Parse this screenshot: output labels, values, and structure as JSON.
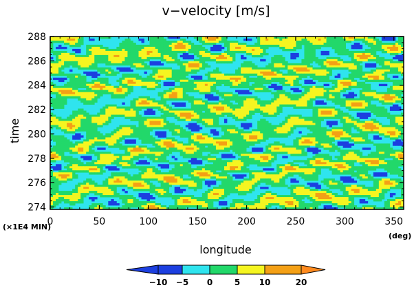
{
  "chart_data": {
    "type": "heatmap",
    "title": "v−velocity [m/s]",
    "xlabel": "longitude",
    "ylabel": "time",
    "x_unit": "(deg)",
    "y_unit": "(×1E4 MIN)",
    "xlim": [
      0,
      360
    ],
    "ylim": [
      273.8,
      288
    ],
    "x_ticks": [
      "0",
      "50",
      "100",
      "150",
      "200",
      "250",
      "300",
      "350"
    ],
    "x_tick_values": [
      0,
      50,
      100,
      150,
      200,
      250,
      300,
      350
    ],
    "y_ticks": [
      "274",
      "276",
      "278",
      "280",
      "282",
      "284",
      "286",
      "288"
    ],
    "y_tick_values": [
      274,
      276,
      278,
      280,
      282,
      284,
      286,
      288
    ],
    "colorbar": {
      "labels": [
        "−10",
        "−5",
        "0",
        "5",
        "10",
        "20"
      ],
      "levels": [
        -10,
        -5,
        0,
        5,
        10,
        20
      ],
      "colors": [
        "#1c3fe0",
        "#2fe4ee",
        "#22d86a",
        "#f5f520",
        "#f4a015",
        "#ff8a1e"
      ],
      "extend": "both"
    },
    "field_note": "v-velocity field varies with longitude and time, mostly between -5 and 10 m/s with zonally elongated streaks"
  }
}
